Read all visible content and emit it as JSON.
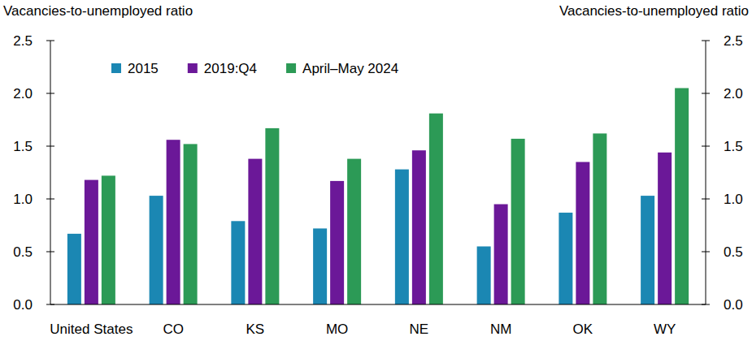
{
  "chart_data": {
    "type": "bar",
    "ylabel": "Vacancies-to-unemployed ratio",
    "y2label": "Vacancies-to-unemployed ratio",
    "categories": [
      "United States",
      "CO",
      "KS",
      "MO",
      "NE",
      "NM",
      "OK",
      "WY"
    ],
    "series": [
      {
        "name": "2015",
        "color": "#1b87b3",
        "values": [
          0.67,
          1.03,
          0.79,
          0.72,
          1.28,
          0.55,
          0.87,
          1.03
        ]
      },
      {
        "name": "2019:Q4",
        "color": "#6b1898",
        "values": [
          1.18,
          1.56,
          1.38,
          1.17,
          1.46,
          0.95,
          1.35,
          1.44
        ]
      },
      {
        "name": "April–May 2024",
        "color": "#2c9a56",
        "values": [
          1.22,
          1.52,
          1.67,
          1.38,
          1.81,
          1.57,
          1.62,
          2.05
        ]
      }
    ],
    "ylim": [
      0,
      2.5
    ],
    "yticks": [
      {
        "value": 0,
        "label": "0.0"
      },
      0.5,
      {
        "value": 1,
        "label": "1.0"
      },
      1.5,
      {
        "value": 2,
        "label": "2.0"
      },
      2.5
    ],
    "y2lim": [
      0,
      2.5
    ],
    "y2ticks": [
      {
        "value": 0,
        "label": "0.0"
      },
      0.5,
      {
        "value": 1,
        "label": "1.0"
      },
      1.5,
      {
        "value": 2,
        "label": "2.0"
      },
      2.5
    ],
    "legend": "upper left",
    "grid": false
  }
}
